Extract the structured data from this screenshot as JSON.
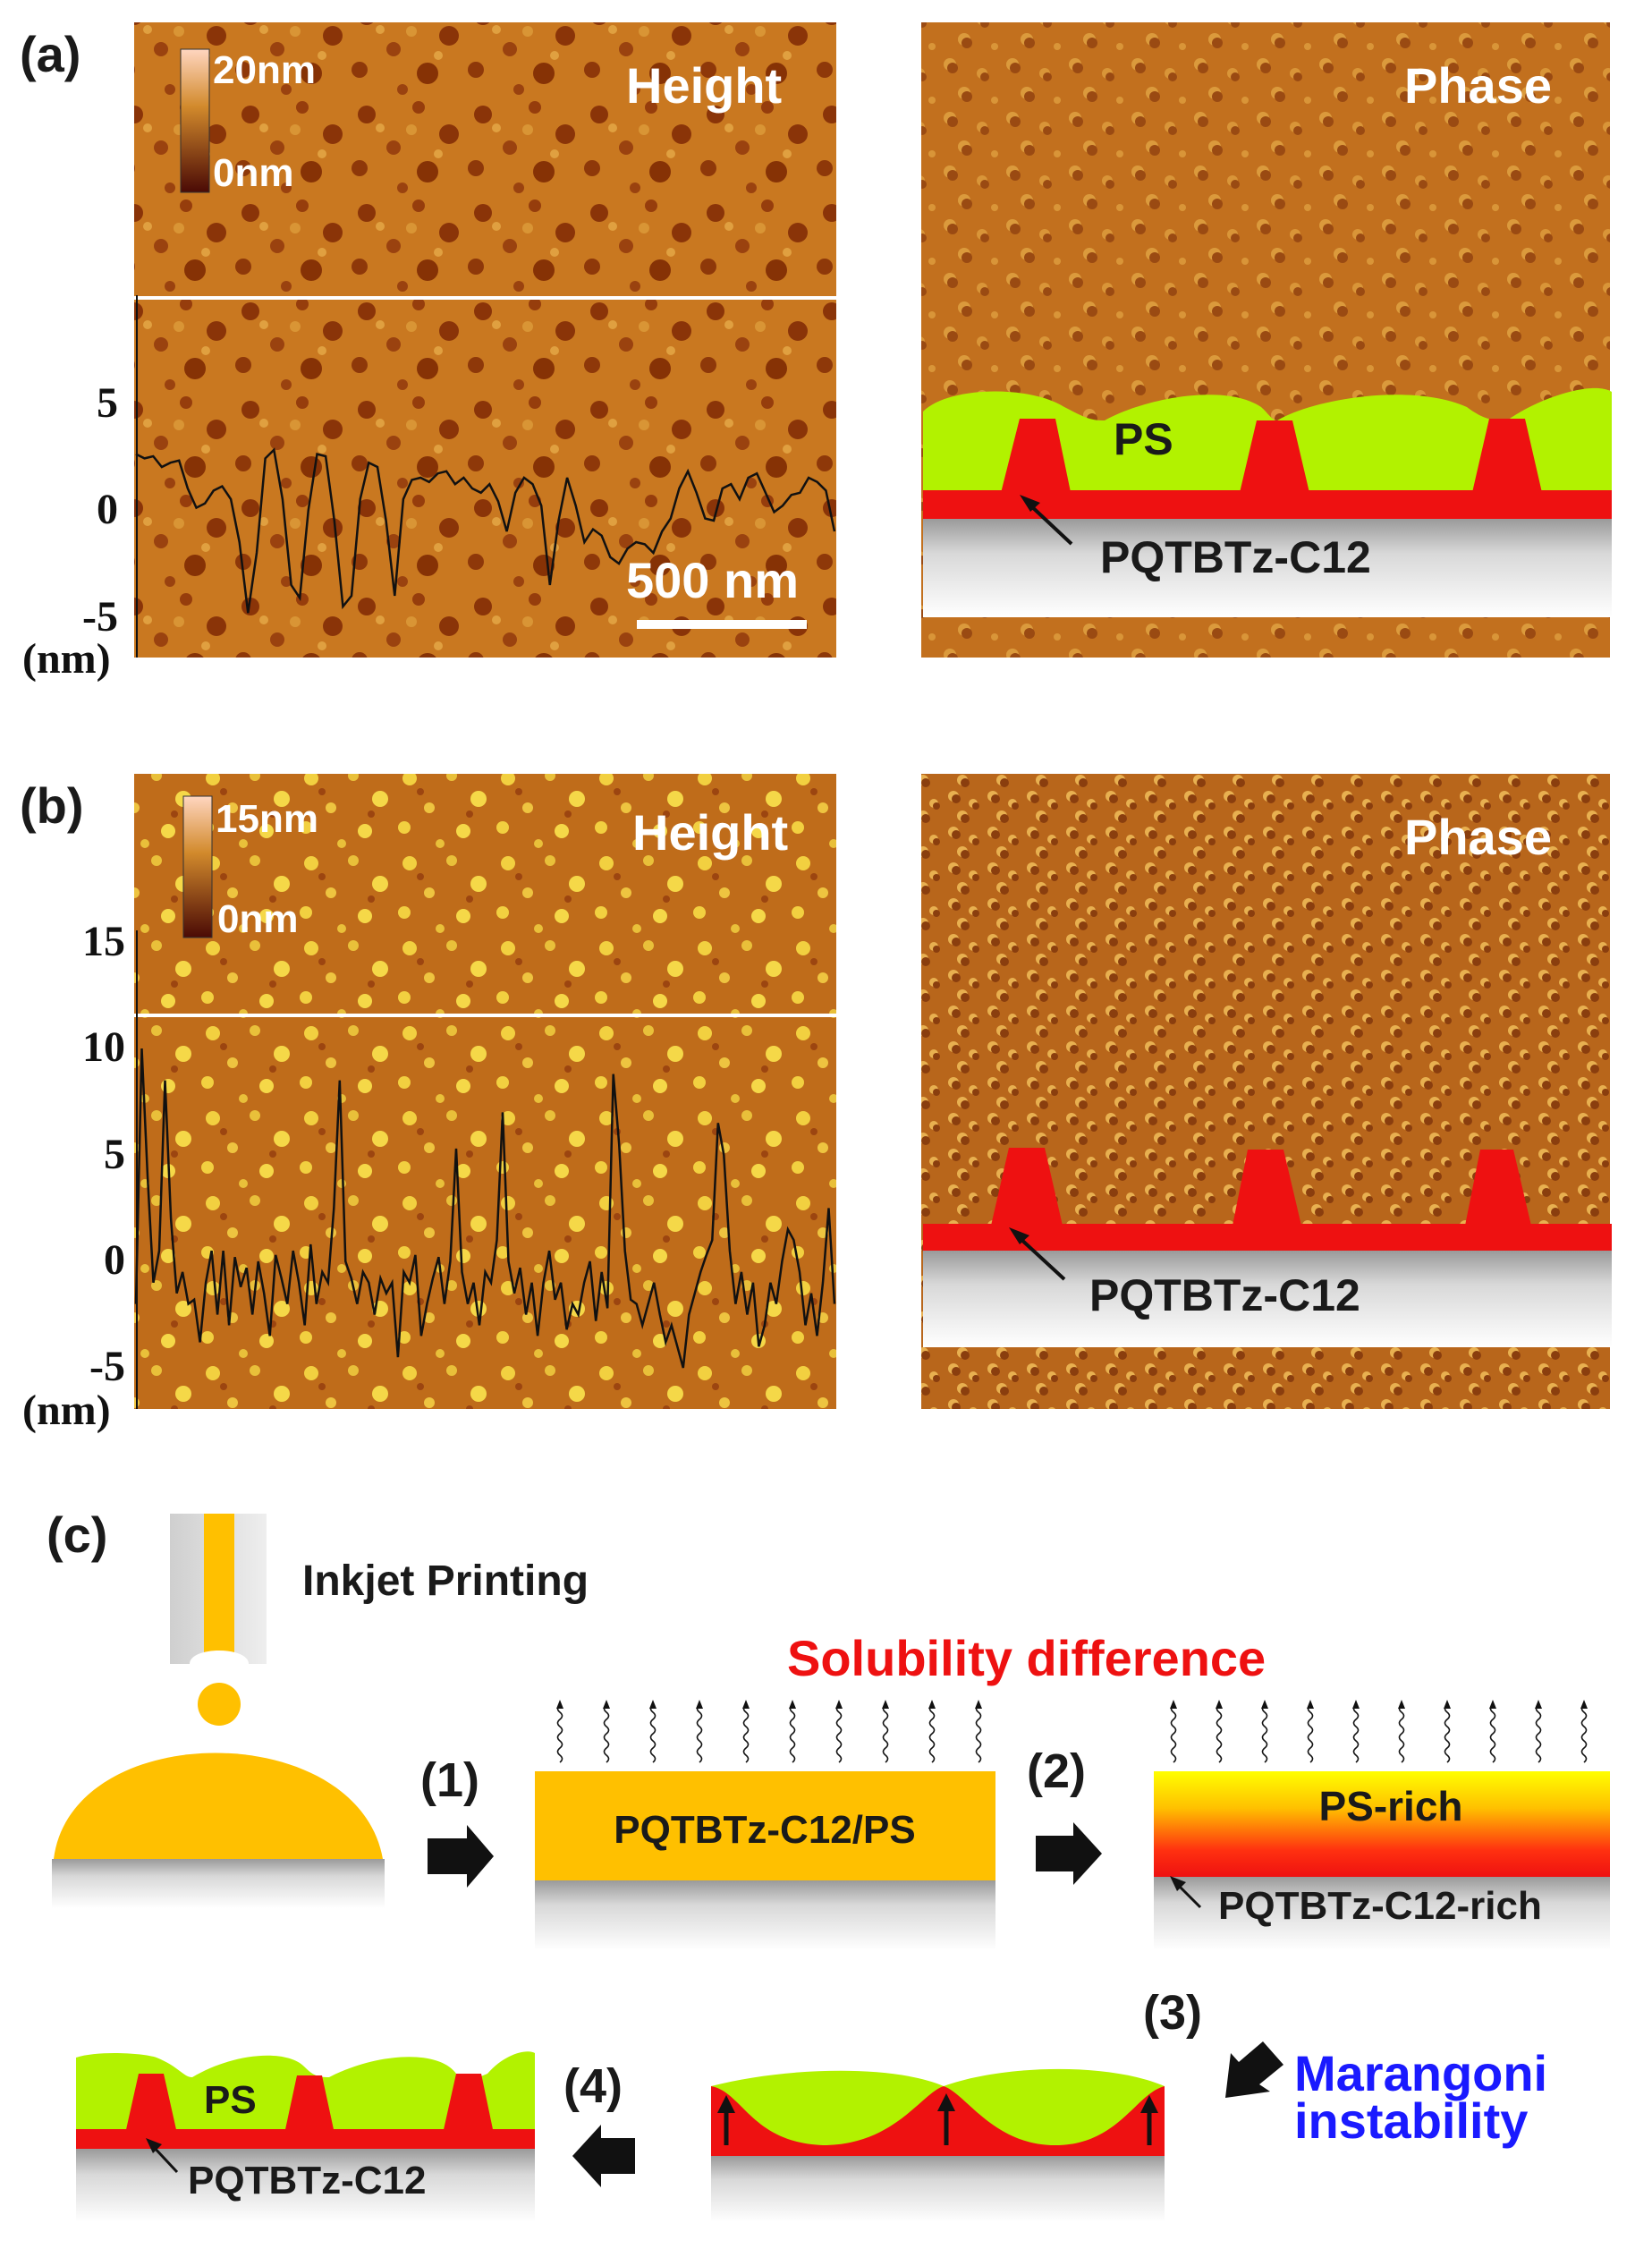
{
  "panel_a": {
    "label": "(a)",
    "colorbar_max": "20nm",
    "colorbar_min": "0nm",
    "height_title": "Height",
    "phase_title": "Phase",
    "scale_bar": "500 nm",
    "y_ticks": [
      "5",
      "0",
      "-5"
    ],
    "y_unit": "(nm)",
    "profile": [
      2.6,
      2.4,
      2.5,
      2.0,
      2.2,
      2.3,
      1.0,
      0.1,
      0.3,
      0.9,
      1.1,
      0.5,
      -1.5,
      -4.8,
      -2.0,
      2.4,
      2.8,
      0.5,
      -3.5,
      -4.1,
      0.0,
      2.6,
      2.5,
      -0.5,
      -4.5,
      -4.0,
      0.5,
      2.2,
      2.0,
      -0.5,
      -4.0,
      0.5,
      1.4,
      1.5,
      1.3,
      1.7,
      1.8,
      1.2,
      1.5,
      1.0,
      0.8,
      1.2,
      0.4,
      -1.0,
      0.8,
      1.5,
      1.2,
      0.2,
      -3.5,
      -0.5,
      1.5,
      0.2,
      -1.5,
      -0.9,
      -1.2,
      -2.2,
      -2.5,
      -1.8,
      -1.5,
      -1.6,
      -2.0,
      -1.0,
      -0.4,
      1.0,
      1.8,
      0.8,
      -0.4,
      -0.5,
      1.0,
      1.2,
      0.5,
      1.5,
      1.7,
      0.8,
      -0.1,
      0.2,
      0.7,
      0.8,
      1.5,
      1.3,
      0.9,
      -1.0
    ],
    "schematic_ps": "PS",
    "schematic_pqt": "PQTBTz-C12"
  },
  "panel_b": {
    "label": "(b)",
    "colorbar_max": "15nm",
    "colorbar_min": "0nm",
    "height_title": "Height",
    "phase_title": "Phase",
    "y_ticks": [
      "15",
      "10",
      "5",
      "0",
      "-5"
    ],
    "y_unit": "(nm)",
    "profile": [
      -2.0,
      10.0,
      4.0,
      -1.0,
      0.5,
      8.5,
      2.0,
      -1.5,
      -0.5,
      -2.0,
      -1.8,
      -3.8,
      -1.0,
      0.5,
      -2.5,
      0.5,
      -3.0,
      0.2,
      -1.2,
      -0.3,
      -2.5,
      0.0,
      -1.5,
      -3.5,
      0.3,
      -0.8,
      -2.0,
      0.5,
      -1.0,
      -3.0,
      0.8,
      -2.0,
      -0.5,
      -1.0,
      2.5,
      8.5,
      0.0,
      -0.8,
      -2.0,
      -0.5,
      -1.0,
      -2.5,
      -0.8,
      -1.5,
      -1.0,
      -4.5,
      -0.5,
      -1.0,
      0.3,
      -3.5,
      -2.0,
      -0.8,
      0.2,
      -2.0,
      0.0,
      5.3,
      -0.5,
      -2.0,
      -1.0,
      -3.0,
      -0.5,
      -1.0,
      1.0,
      7.0,
      0.0,
      -1.5,
      -0.3,
      -2.5,
      -1.0,
      -3.5,
      -1.0,
      0.5,
      -1.8,
      -1.0,
      -3.2,
      -2.0,
      -2.5,
      -1.0,
      0.0,
      -2.8,
      -0.5,
      -2.2,
      8.8,
      5.5,
      0.5,
      -1.8,
      -2.0,
      -3.0,
      -2.0,
      -1.0,
      -2.5,
      -3.8,
      -3.0,
      -4.0,
      -5.0,
      -2.5,
      -1.5,
      -0.5,
      0.3,
      1.0,
      6.5,
      5.0,
      0.5,
      -2.0,
      -0.5,
      -2.5,
      -1.0,
      -4.0,
      -3.0,
      -1.0,
      -2.0,
      0.0,
      1.5,
      1.0,
      -0.5,
      -3.0,
      -1.5,
      -3.5,
      -1.0,
      2.5,
      -2.0
    ],
    "schematic_pqt": "PQTBTz-C12"
  },
  "panel_c": {
    "label": "(c)",
    "inkjet_label": "Inkjet Printing",
    "solubility_label": "Solubility difference",
    "step1": "(1)",
    "step2": "(2)",
    "step3": "(3)",
    "step4": "(4)",
    "blend_label": "PQTBTz-C12/PS",
    "ps_rich_label": "PS-rich",
    "pqt_rich_label": "PQTBTz-C12-rich",
    "marangoni_line1": "Marangoni",
    "marangoni_line2": "instability",
    "final_ps": "PS",
    "final_pqt": "PQTBTz-C12"
  },
  "colors": {
    "afm_base": "#c8741f",
    "polymer_red": "#ee1111",
    "ps_green": "#b2f200",
    "ink_yellow": "#ffc000",
    "solubility_red": "#ee1111",
    "marangoni_blue": "#1a1aff"
  }
}
